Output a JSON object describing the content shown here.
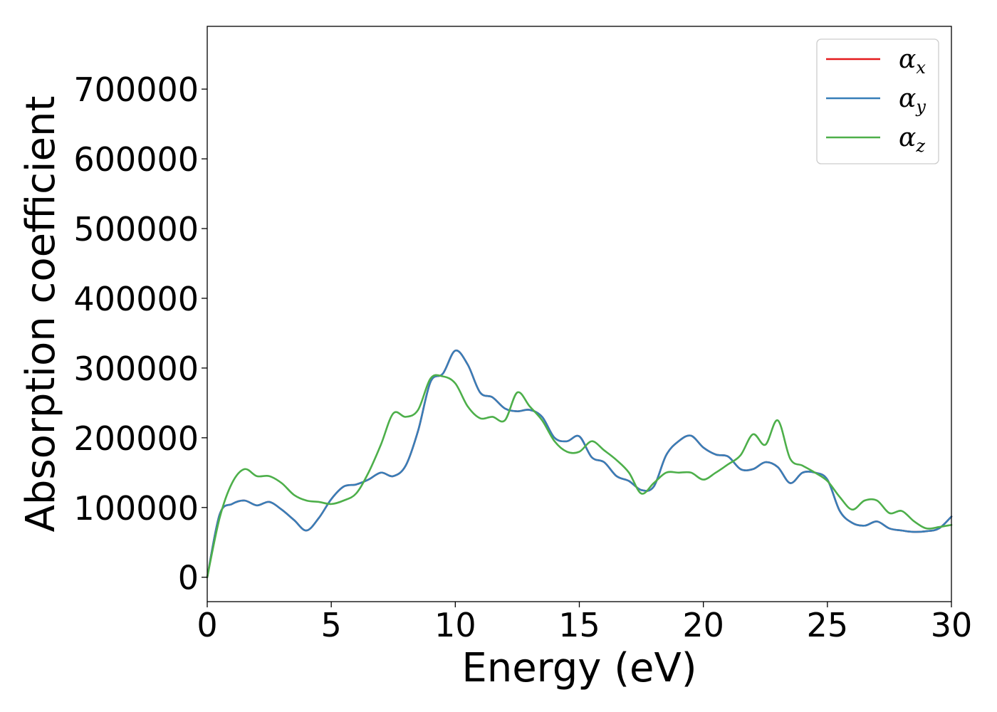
{
  "chart_data": {
    "type": "line",
    "title": "",
    "xlabel": "Energy (eV)",
    "ylabel": "Absorption coefficient",
    "xlim": [
      0,
      30
    ],
    "ylim": [
      -35000,
      790000
    ],
    "xticks": [
      0,
      5,
      10,
      15,
      20,
      25,
      30
    ],
    "xtick_labels": [
      "0",
      "5",
      "10",
      "15",
      "20",
      "25",
      "30"
    ],
    "yticks": [
      0,
      100000,
      200000,
      300000,
      400000,
      500000,
      600000,
      700000
    ],
    "ytick_labels": [
      "0",
      "100000",
      "200000",
      "300000",
      "400000",
      "500000",
      "600000",
      "700000"
    ],
    "grid": false,
    "legend_position": "top-right",
    "x": [
      0,
      0.5,
      1,
      1.5,
      2,
      2.5,
      3,
      3.5,
      4,
      4.5,
      5,
      5.5,
      6,
      6.5,
      7,
      7.5,
      8,
      8.5,
      9,
      9.5,
      10,
      10.5,
      11,
      11.5,
      12,
      12.5,
      13,
      13.5,
      14,
      14.5,
      15,
      15.5,
      16,
      16.5,
      17,
      17.5,
      18,
      18.5,
      19,
      19.5,
      20,
      20.5,
      21,
      21.5,
      22,
      22.5,
      23,
      23.5,
      24,
      24.5,
      25,
      25.5,
      26,
      26.5,
      27,
      27.5,
      28,
      28.5,
      29,
      29.5,
      30
    ],
    "series": [
      {
        "name": "α",
        "subscript": "x",
        "color": "#e41a1c",
        "values": [
          0,
          90000,
          105000,
          110000,
          103000,
          108000,
          97000,
          82000,
          67000,
          85000,
          112000,
          130000,
          133000,
          140000,
          150000,
          145000,
          160000,
          210000,
          280000,
          292000,
          325000,
          305000,
          265000,
          258000,
          242000,
          238000,
          240000,
          230000,
          200000,
          195000,
          202000,
          172000,
          165000,
          145000,
          138000,
          125000,
          130000,
          175000,
          195000,
          203000,
          186000,
          176000,
          173000,
          155000,
          155000,
          165000,
          158000,
          135000,
          150000,
          150000,
          140000,
          95000,
          78000,
          74000,
          80000,
          70000,
          67000,
          65000,
          66000,
          70000,
          87000
        ]
      },
      {
        "name": "α",
        "subscript": "y",
        "color": "#377eb8",
        "values": [
          0,
          90000,
          105000,
          110000,
          103000,
          108000,
          97000,
          82000,
          67000,
          85000,
          112000,
          130000,
          133000,
          140000,
          150000,
          145000,
          160000,
          210000,
          280000,
          292000,
          325000,
          305000,
          265000,
          258000,
          242000,
          238000,
          240000,
          230000,
          200000,
          195000,
          202000,
          172000,
          165000,
          145000,
          138000,
          125000,
          130000,
          175000,
          195000,
          203000,
          186000,
          176000,
          173000,
          155000,
          155000,
          165000,
          158000,
          135000,
          150000,
          150000,
          140000,
          95000,
          78000,
          74000,
          80000,
          70000,
          67000,
          65000,
          66000,
          70000,
          87000
        ]
      },
      {
        "name": "α",
        "subscript": "z",
        "color": "#4daf4a",
        "values": [
          0,
          85000,
          135000,
          155000,
          145000,
          145000,
          135000,
          118000,
          110000,
          108000,
          105000,
          110000,
          120000,
          150000,
          190000,
          235000,
          230000,
          240000,
          285000,
          288000,
          278000,
          245000,
          228000,
          230000,
          225000,
          265000,
          245000,
          225000,
          195000,
          180000,
          180000,
          195000,
          182000,
          168000,
          150000,
          120000,
          135000,
          150000,
          150000,
          150000,
          140000,
          150000,
          162000,
          175000,
          205000,
          190000,
          225000,
          170000,
          160000,
          150000,
          138000,
          115000,
          97000,
          110000,
          110000,
          92000,
          95000,
          80000,
          70000,
          72000,
          75000
        ]
      }
    ]
  }
}
